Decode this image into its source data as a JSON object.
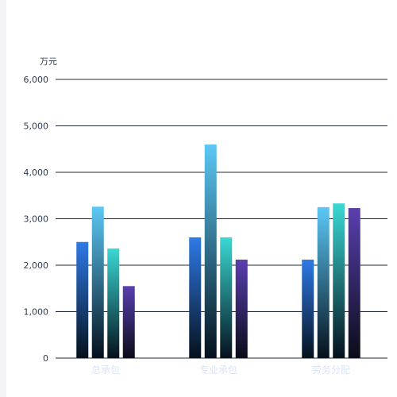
{
  "chart_data": {
    "type": "bar",
    "ylabel": "万元",
    "ylim": [
      0,
      6000
    ],
    "yticks": [
      "0",
      "1,000",
      "2,000",
      "3,000",
      "4,000",
      "5,000",
      "6,000"
    ],
    "categories": [
      "总承包",
      "专业承包",
      "劳务分配"
    ],
    "series": [
      {
        "color_top": "#2f7ae6",
        "color_bottom": "#05101c",
        "values": [
          2500,
          2600,
          2120
        ]
      },
      {
        "color_top": "#5cc8f5",
        "color_bottom": "#05101c",
        "values": [
          3260,
          4600,
          3250
        ]
      },
      {
        "color_top": "#3ad9d4",
        "color_bottom": "#05101c",
        "values": [
          2360,
          2600,
          3330
        ]
      },
      {
        "color_top": "#5a3fb0",
        "color_bottom": "#0a0c18",
        "values": [
          1550,
          2120,
          3230
        ]
      }
    ],
    "grid": true,
    "grid_color": "#1f2a36"
  }
}
